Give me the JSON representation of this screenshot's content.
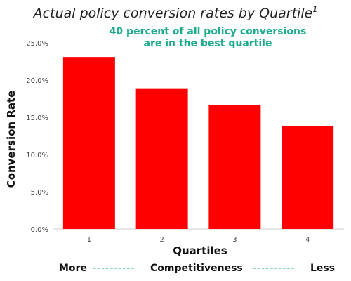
{
  "chart_data": {
    "type": "bar",
    "title": "Actual policy conversion rates by Quartile",
    "title_footnote": "1",
    "subtitle_lines": [
      "40 percent of all policy conversions",
      "are in the best quartile"
    ],
    "xlabel": "Quartiles",
    "ylabel": "Conversion Rate",
    "categories": [
      "1",
      "2",
      "3",
      "4"
    ],
    "values": [
      23.1,
      18.9,
      16.7,
      13.8
    ],
    "ylim": [
      0,
      25
    ],
    "yticks": [
      0,
      5,
      10,
      15,
      20,
      25
    ],
    "ytick_labels": [
      "0.0%",
      "5.0%",
      "10.0%",
      "15.0%",
      "20.0%",
      "25.0%"
    ],
    "grid": false,
    "bar_color": "#ff0000",
    "accent_color": "#1aaa8c"
  },
  "footer": {
    "left": "More",
    "dash_left": "----------",
    "middle": "Competitiveness",
    "dash_right": "----------",
    "right": "Less"
  }
}
